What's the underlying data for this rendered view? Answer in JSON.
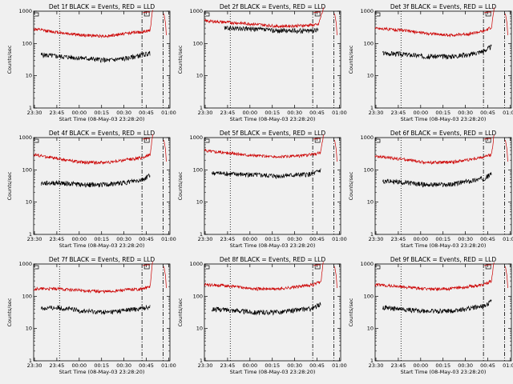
{
  "page": {
    "background": "#f0f0f0"
  },
  "shared": {
    "xlabel": "Start Time (08-May-03 23:28:20)",
    "ylabel": "Counts/sec",
    "x_tick_labels": [
      "23:30",
      "23:45",
      "00:00",
      "00:15",
      "00:30",
      "00:45",
      "01:00"
    ],
    "y_tick_labels": [
      "1",
      "10",
      "100",
      "1000"
    ],
    "colors": {
      "events": "#000000",
      "lld": "#cc0000"
    }
  },
  "chart_data": [
    {
      "type": "line",
      "title": "Det 1f BLACK = Events, RED = LLD",
      "x_tick_labels": [
        "23:30",
        "23:45",
        "00:00",
        "00:15",
        "00:30",
        "00:45",
        "01:00"
      ],
      "ylabel": "Counts/sec",
      "xlabel": "Start Time (08-May-03 23:28:20)",
      "yscale": "log",
      "ylim": [
        1,
        1000
      ],
      "series": [
        {
          "name": "Events",
          "color": "#000000",
          "profile": [
            [
              3,
              45
            ],
            [
              10,
              40
            ],
            [
              20,
              35
            ],
            [
              30,
              30
            ],
            [
              38,
              35
            ],
            [
              44,
              45
            ],
            [
              47,
              50
            ]
          ]
        },
        {
          "name": "LLD",
          "color": "#cc0000",
          "profile": [
            [
              0,
              280
            ],
            [
              10,
              220
            ],
            [
              20,
              180
            ],
            [
              30,
              170
            ],
            [
              38,
              210
            ],
            [
              44,
              230
            ],
            [
              47,
              250
            ],
            [
              48,
              1200
            ]
          ]
        }
      ]
    },
    {
      "type": "line",
      "title": "Det 2f BLACK = Events, RED = LLD",
      "x_tick_labels": [
        "23:30",
        "23:45",
        "00:00",
        "00:15",
        "00:30",
        "00:45",
        "01:00"
      ],
      "ylabel": "Counts/sec",
      "xlabel": "Start Time (08-May-03 23:28:20)",
      "yscale": "log",
      "ylim": [
        1,
        1000
      ],
      "series": [
        {
          "name": "Events",
          "color": "#000000",
          "profile": [
            [
              8,
              300
            ],
            [
              20,
              280
            ],
            [
              30,
              250
            ],
            [
              40,
              250
            ],
            [
              46,
              260
            ]
          ]
        },
        {
          "name": "LLD",
          "color": "#cc0000",
          "profile": [
            [
              0,
              500
            ],
            [
              10,
              450
            ],
            [
              20,
              400
            ],
            [
              30,
              340
            ],
            [
              40,
              360
            ],
            [
              46,
              380
            ],
            [
              48,
              1200
            ]
          ]
        }
      ]
    },
    {
      "type": "line",
      "title": "Det 3f BLACK = Events, RED = LLD",
      "x_tick_labels": [
        "23:30",
        "23:45",
        "00:00",
        "00:15",
        "00:30",
        "00:45",
        "01:00"
      ],
      "ylabel": "Counts/sec",
      "xlabel": "Start Time (08-May-03 23:28:20)",
      "yscale": "log",
      "ylim": [
        1,
        1000
      ],
      "series": [
        {
          "name": "Events",
          "color": "#000000",
          "profile": [
            [
              3,
              50
            ],
            [
              10,
              48
            ],
            [
              20,
              40
            ],
            [
              30,
              40
            ],
            [
              38,
              45
            ],
            [
              44,
              60
            ],
            [
              47,
              80
            ]
          ]
        },
        {
          "name": "LLD",
          "color": "#cc0000",
          "profile": [
            [
              0,
              300
            ],
            [
              10,
              260
            ],
            [
              20,
              210
            ],
            [
              30,
              180
            ],
            [
              38,
              200
            ],
            [
              44,
              240
            ],
            [
              47,
              320
            ],
            [
              48,
              1200
            ]
          ]
        }
      ]
    },
    {
      "type": "line",
      "title": "Det 4f BLACK = Events, RED = LLD",
      "x_tick_labels": [
        "23:30",
        "23:45",
        "00:00",
        "00:15",
        "00:30",
        "00:45",
        "01:00"
      ],
      "ylabel": "Counts/sec",
      "xlabel": "Start Time (08-May-03 23:28:20)",
      "yscale": "log",
      "ylim": [
        1,
        1000
      ],
      "series": [
        {
          "name": "Events",
          "color": "#000000",
          "profile": [
            [
              3,
              38
            ],
            [
              10,
              40
            ],
            [
              20,
              35
            ],
            [
              30,
              35
            ],
            [
              38,
              42
            ],
            [
              44,
              50
            ],
            [
              47,
              70
            ]
          ]
        },
        {
          "name": "LLD",
          "color": "#cc0000",
          "profile": [
            [
              0,
              300
            ],
            [
              10,
              220
            ],
            [
              20,
              170
            ],
            [
              30,
              170
            ],
            [
              38,
              210
            ],
            [
              44,
              240
            ],
            [
              47,
              300
            ],
            [
              48,
              1200
            ]
          ]
        }
      ]
    },
    {
      "type": "line",
      "title": "Det 5f BLACK = Events, RED = LLD",
      "x_tick_labels": [
        "23:30",
        "23:45",
        "00:00",
        "00:15",
        "00:30",
        "00:45",
        "01:00"
      ],
      "ylabel": "Counts/sec",
      "xlabel": "Start Time (08-May-03 23:28:20)",
      "yscale": "log",
      "ylim": [
        1,
        1000
      ],
      "series": [
        {
          "name": "Events",
          "color": "#000000",
          "profile": [
            [
              3,
              80
            ],
            [
              10,
              75
            ],
            [
              20,
              70
            ],
            [
              30,
              65
            ],
            [
              38,
              70
            ],
            [
              44,
              75
            ],
            [
              47,
              100
            ]
          ]
        },
        {
          "name": "LLD",
          "color": "#cc0000",
          "profile": [
            [
              0,
              400
            ],
            [
              10,
              330
            ],
            [
              20,
              280
            ],
            [
              30,
              250
            ],
            [
              38,
              270
            ],
            [
              44,
              300
            ],
            [
              47,
              350
            ],
            [
              48,
              1200
            ]
          ]
        }
      ]
    },
    {
      "type": "line",
      "title": "Det 6f BLACK = Events, RED = LLD",
      "x_tick_labels": [
        "23:30",
        "23:45",
        "00:00",
        "00:15",
        "00:30",
        "00:45",
        "01:00"
      ],
      "ylabel": "Counts/sec",
      "xlabel": "Start Time (08-May-03 23:28:20)",
      "yscale": "log",
      "ylim": [
        1,
        1000
      ],
      "series": [
        {
          "name": "Events",
          "color": "#000000",
          "profile": [
            [
              3,
              45
            ],
            [
              10,
              42
            ],
            [
              20,
              35
            ],
            [
              30,
              35
            ],
            [
              38,
              45
            ],
            [
              44,
              55
            ],
            [
              47,
              75
            ]
          ]
        },
        {
          "name": "LLD",
          "color": "#cc0000",
          "profile": [
            [
              0,
              260
            ],
            [
              10,
              220
            ],
            [
              20,
              170
            ],
            [
              30,
              170
            ],
            [
              38,
              210
            ],
            [
              44,
              250
            ],
            [
              47,
              300
            ],
            [
              48,
              1200
            ]
          ]
        }
      ]
    },
    {
      "type": "line",
      "title": "Det 7f BLACK = Events, RED = LLD",
      "x_tick_labels": [
        "23:30",
        "23:45",
        "00:00",
        "00:15",
        "00:30",
        "00:45",
        "01:00"
      ],
      "ylabel": "Counts/sec",
      "xlabel": "Start Time (08-May-03 23:28:20)",
      "yscale": "log",
      "ylim": [
        1,
        1000
      ],
      "series": [
        {
          "name": "Events",
          "color": "#000000",
          "profile": [
            [
              3,
              42
            ],
            [
              10,
              45
            ],
            [
              20,
              35
            ],
            [
              30,
              32
            ],
            [
              38,
              38
            ],
            [
              44,
              42
            ],
            [
              47,
              50
            ]
          ]
        },
        {
          "name": "LLD",
          "color": "#cc0000",
          "profile": [
            [
              0,
              170
            ],
            [
              10,
              170
            ],
            [
              20,
              150
            ],
            [
              30,
              140
            ],
            [
              38,
              160
            ],
            [
              44,
              170
            ],
            [
              47,
              200
            ],
            [
              48,
              1200
            ]
          ]
        }
      ]
    },
    {
      "type": "line",
      "title": "Det 8f BLACK = Events, RED = LLD",
      "x_tick_labels": [
        "23:30",
        "23:45",
        "00:00",
        "00:15",
        "00:30",
        "00:45",
        "01:00"
      ],
      "ylabel": "Counts/sec",
      "xlabel": "Start Time (08-May-03 23:28:20)",
      "yscale": "log",
      "ylim": [
        1,
        1000
      ],
      "series": [
        {
          "name": "Events",
          "color": "#000000",
          "profile": [
            [
              3,
              40
            ],
            [
              10,
              38
            ],
            [
              20,
              32
            ],
            [
              30,
              32
            ],
            [
              38,
              38
            ],
            [
              44,
              42
            ],
            [
              47,
              60
            ]
          ]
        },
        {
          "name": "LLD",
          "color": "#cc0000",
          "profile": [
            [
              0,
              230
            ],
            [
              10,
              210
            ],
            [
              20,
              170
            ],
            [
              30,
              170
            ],
            [
              38,
              200
            ],
            [
              44,
              230
            ],
            [
              47,
              280
            ],
            [
              48,
              1200
            ]
          ]
        }
      ]
    },
    {
      "type": "line",
      "title": "Det 9f BLACK = Events, RED = LLD",
      "x_tick_labels": [
        "23:30",
        "23:45",
        "00:00",
        "00:15",
        "00:30",
        "00:45",
        "01:00"
      ],
      "ylabel": "Counts/sec",
      "xlabel": "Start Time (08-May-03 23:28:20)",
      "yscale": "log",
      "ylim": [
        1,
        1000
      ],
      "series": [
        {
          "name": "Events",
          "color": "#000000",
          "profile": [
            [
              3,
              45
            ],
            [
              10,
              40
            ],
            [
              20,
              35
            ],
            [
              30,
              35
            ],
            [
              38,
              42
            ],
            [
              44,
              50
            ],
            [
              47,
              70
            ]
          ]
        },
        {
          "name": "LLD",
          "color": "#cc0000",
          "profile": [
            [
              0,
              230
            ],
            [
              10,
              200
            ],
            [
              20,
              170
            ],
            [
              30,
              170
            ],
            [
              38,
              200
            ],
            [
              44,
              230
            ],
            [
              47,
              300
            ],
            [
              48,
              1200
            ]
          ]
        }
      ]
    }
  ]
}
